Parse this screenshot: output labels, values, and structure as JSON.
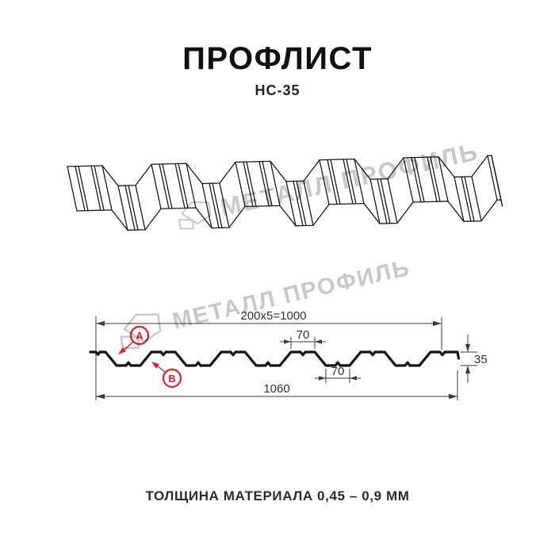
{
  "header": {
    "title": "ПРОФЛИСТ",
    "model": "НС-35"
  },
  "drawing": {
    "dim_pitch_total": "200x5=1000",
    "dim_crest_width": "70",
    "dim_valley_width": "70",
    "dim_profile_height": "35",
    "dim_overall_width": "1060",
    "callout_a": "А",
    "callout_b": "В"
  },
  "watermark": {
    "brand": "МЕТАЛЛ ПРОФИЛЬ"
  },
  "footer": {
    "note": "ТОЛЩИНА МАТЕРИАЛА 0,45 – 0,9 ММ"
  },
  "colors": {
    "accent_red": "#ec1c24",
    "line_dark": "#1a1a1a",
    "dim_line": "#3a3a3a",
    "watermark_gray": "#c8c8c8"
  }
}
